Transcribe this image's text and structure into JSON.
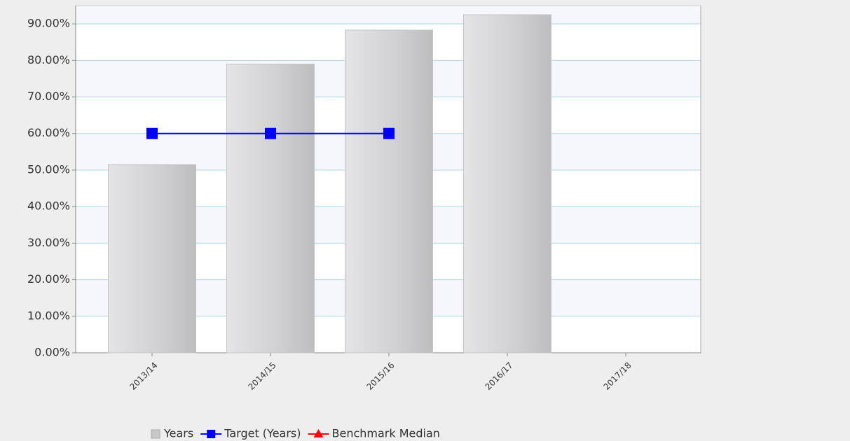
{
  "chart_data": {
    "type": "bar",
    "categories": [
      "2013/14",
      "2014/15",
      "2015/16",
      "2016/17",
      "2017/18"
    ],
    "series": [
      {
        "name": "Years",
        "type": "bar",
        "color": "#c8c8ca",
        "values": [
          51.5,
          79,
          88.3,
          92.5,
          null
        ]
      },
      {
        "name": "Target (Years)",
        "type": "line",
        "marker": "square",
        "color": "#0000ff",
        "values": [
          60,
          60,
          60,
          null,
          null
        ]
      },
      {
        "name": "Benchmark Median",
        "type": "line",
        "marker": "triangle",
        "color": "#ff0000",
        "values": [
          null,
          null,
          null,
          null,
          null
        ]
      }
    ],
    "ylim": [
      0,
      95
    ],
    "yticks": [
      {
        "value": 0,
        "label": "0.00%"
      },
      {
        "value": 10,
        "label": "10.00%"
      },
      {
        "value": 20,
        "label": "20.00%"
      },
      {
        "value": 30,
        "label": "30.00%"
      },
      {
        "value": 40,
        "label": "40.00%"
      },
      {
        "value": 50,
        "label": "50.00%"
      },
      {
        "value": 60,
        "label": "60.00%"
      },
      {
        "value": 70,
        "label": "70.00%"
      },
      {
        "value": 80,
        "label": "80.00%"
      },
      {
        "value": 90,
        "label": "90.00%"
      }
    ],
    "grid": true,
    "legend": "bottom"
  }
}
